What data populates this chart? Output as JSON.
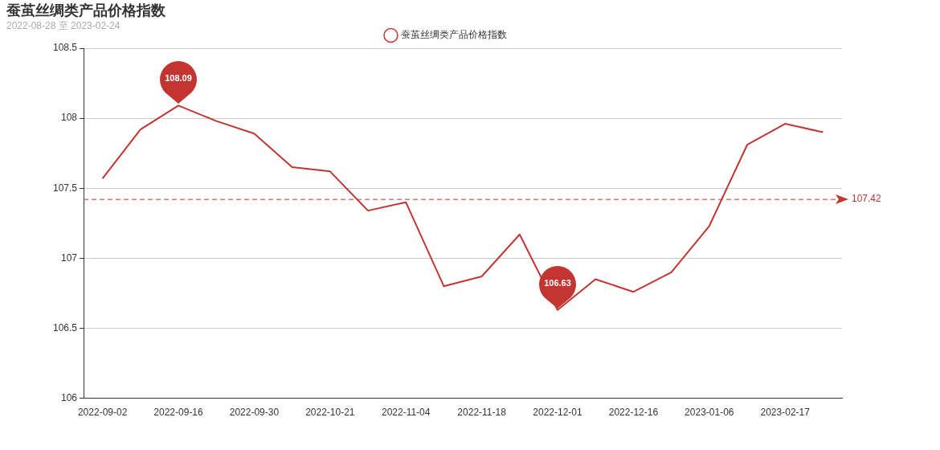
{
  "chart_data": {
    "type": "line",
    "title": "蚕茧丝绸类产品价格指数",
    "subtitle": "2022-08-28 至 2023-02-24",
    "categories": [
      "2022-09-02",
      null,
      "2022-09-16",
      null,
      "2022-09-30",
      null,
      "2022-10-21",
      null,
      "2022-11-04",
      null,
      "2022-11-18",
      null,
      "2022-12-01",
      null,
      "2022-12-16",
      null,
      "2023-01-06",
      null,
      "2023-02-17",
      null
    ],
    "series": [
      {
        "name": "蚕茧丝绸类产品价格指数",
        "color": "#c23531",
        "values": [
          107.57,
          107.92,
          108.09,
          107.98,
          107.89,
          107.65,
          107.62,
          107.34,
          107.4,
          106.8,
          106.87,
          107.17,
          106.63,
          106.85,
          106.76,
          106.9,
          107.23,
          107.81,
          107.96,
          107.9
        ]
      }
    ],
    "ylim": [
      106,
      108.5
    ],
    "yticks": [
      106,
      106.5,
      107,
      107.5,
      108,
      108.5
    ],
    "grid": "y",
    "legend": "top",
    "marker": "none",
    "line_style": "solid",
    "ref_lines": [
      {
        "axis": "y",
        "value": 107.42,
        "label": "107.42",
        "color": "#c23531",
        "line_style": "dashed"
      }
    ],
    "annotations": [
      {
        "text": "108.09",
        "x": "2022-09-16",
        "y": 108.09
      },
      {
        "text": "106.63",
        "x": "2022-12-01",
        "y": 106.63
      }
    ]
  }
}
